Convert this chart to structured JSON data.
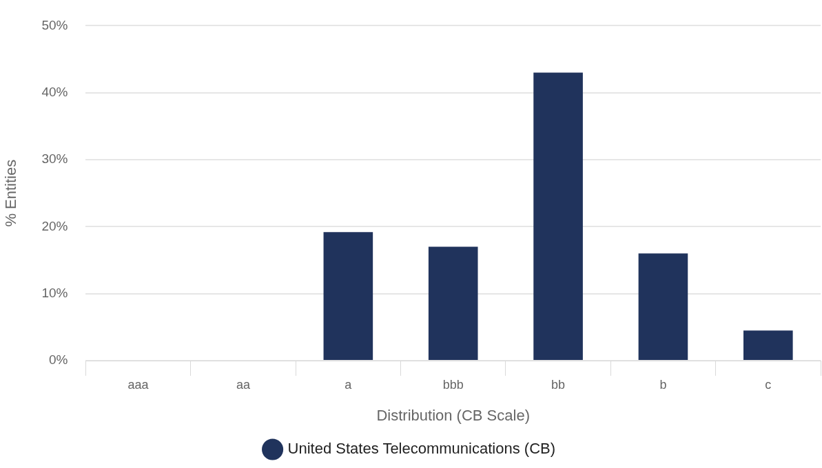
{
  "chart_data": {
    "type": "bar",
    "xlabel": "Distribution (CB Scale)",
    "ylabel": "% Entities",
    "categories": [
      "aaa",
      "aa",
      "a",
      "bbb",
      "bb",
      "b",
      "c"
    ],
    "series": [
      {
        "name": "United States Telecommunications (CB)",
        "color": "#20335c",
        "values": [
          0,
          0,
          19.2,
          17,
          43,
          16,
          4.5
        ]
      }
    ],
    "ylim": [
      0,
      50
    ],
    "yticks": [
      {
        "value": 0,
        "label": "0%"
      },
      {
        "value": 10,
        "label": "10%"
      },
      {
        "value": 20,
        "label": "20%"
      },
      {
        "value": 30,
        "label": "30%"
      },
      {
        "value": 40,
        "label": "40%"
      },
      {
        "value": 50,
        "label": "50%"
      }
    ],
    "grid": "y",
    "legend": "bottom"
  }
}
